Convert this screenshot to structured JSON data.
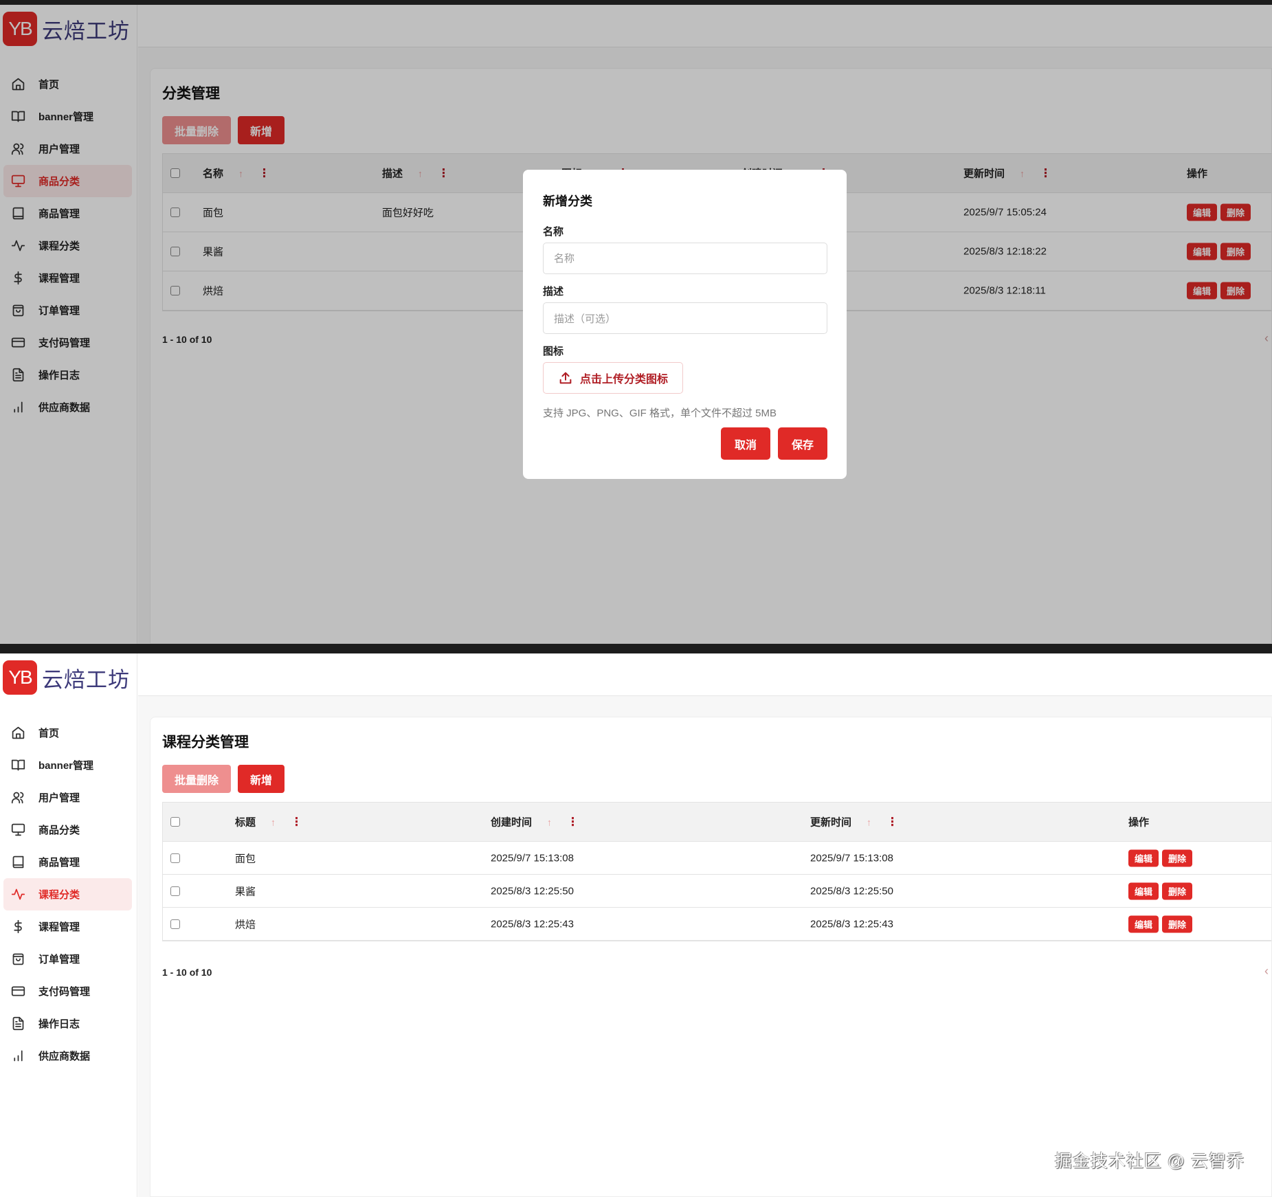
{
  "brand": {
    "badge": "YB",
    "name": "云焙工坊",
    "accent": "#e02a27"
  },
  "sidebar": {
    "items": [
      {
        "label": "首页",
        "icon": "home-icon"
      },
      {
        "label": "banner管理",
        "icon": "book-open-icon"
      },
      {
        "label": "用户管理",
        "icon": "users-icon"
      },
      {
        "label": "商品分类",
        "icon": "monitor-icon"
      },
      {
        "label": "商品管理",
        "icon": "book-icon"
      },
      {
        "label": "课程分类",
        "icon": "activity-icon"
      },
      {
        "label": "课程管理",
        "icon": "dollar-icon"
      },
      {
        "label": "订单管理",
        "icon": "shopping-bag-icon"
      },
      {
        "label": "支付码管理",
        "icon": "credit-card-icon"
      },
      {
        "label": "操作日志",
        "icon": "file-text-icon"
      },
      {
        "label": "供应商数据",
        "icon": "bar-chart-icon"
      }
    ]
  },
  "screen1": {
    "active_nav": 3,
    "title": "分类管理",
    "batch_delete": "批量删除",
    "add": "新增",
    "columns": [
      "名称",
      "描述",
      "图标",
      "创建时间",
      "更新时间",
      "操作"
    ],
    "rows": [
      {
        "name": "面包",
        "desc": "面包好好吃",
        "updated": "2025/9/7 15:05:24"
      },
      {
        "name": "果酱",
        "desc": "",
        "updated": "2025/8/3 12:18:22"
      },
      {
        "name": "烘焙",
        "desc": "",
        "updated": "2025/8/3 12:18:11"
      }
    ],
    "edit": "编辑",
    "delete": "删除",
    "pagination": "1 - 10 of 10",
    "modal": {
      "title": "新增分类",
      "name_label": "名称",
      "name_placeholder": "名称",
      "name_value": "",
      "desc_label": "描述",
      "desc_placeholder": "描述（可选）",
      "desc_value": "",
      "icon_label": "图标",
      "upload": "点击上传分类图标",
      "hint": "支持 JPG、PNG、GIF 格式，单个文件不超过 5MB",
      "cancel": "取消",
      "save": "保存"
    }
  },
  "screen2": {
    "active_nav": 5,
    "title": "课程分类管理",
    "batch_delete": "批量删除",
    "add": "新增",
    "columns": [
      "标题",
      "创建时间",
      "更新时间",
      "操作"
    ],
    "rows": [
      {
        "title": "面包",
        "created": "2025/9/7 15:13:08",
        "updated": "2025/9/7 15:13:08"
      },
      {
        "title": "果酱",
        "created": "2025/8/3 12:25:50",
        "updated": "2025/8/3 12:25:50"
      },
      {
        "title": "烘焙",
        "created": "2025/8/3 12:25:43",
        "updated": "2025/8/3 12:25:43"
      }
    ],
    "edit": "编辑",
    "delete": "删除",
    "pagination": "1 - 10 of 10"
  },
  "watermark": "掘金技术社区 @ 云智乔"
}
